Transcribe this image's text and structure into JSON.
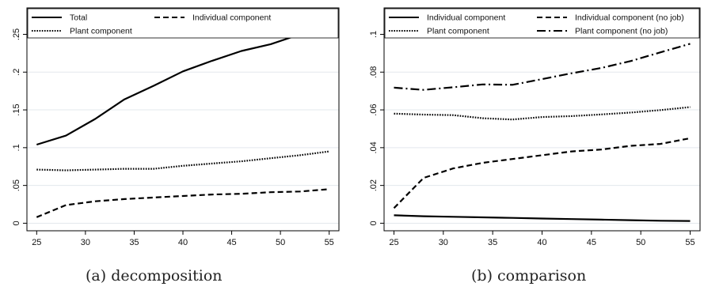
{
  "colors": {
    "line": "#000000",
    "grid": "#e3e8ed",
    "frame": "#000000",
    "background": "#ffffff"
  },
  "chart_data": [
    {
      "type": "line",
      "caption": "(a) decomposition",
      "x": [
        25,
        28,
        31,
        34,
        37,
        40,
        43,
        46,
        49,
        52,
        55
      ],
      "xticks": [
        25,
        30,
        35,
        40,
        45,
        50,
        55
      ],
      "xlim": [
        24,
        56
      ],
      "ylim": [
        -0.01,
        0.285
      ],
      "yticks": [
        0,
        0.05,
        0.1,
        0.15,
        0.2,
        0.25
      ],
      "ytick_labels": [
        "0",
        ".05",
        ".1",
        ".15",
        ".2",
        ".25"
      ],
      "grid": true,
      "legend_position": "top",
      "series": [
        {
          "name": "Total",
          "style": "solid",
          "values": [
            0.104,
            0.116,
            0.138,
            0.164,
            0.182,
            0.201,
            0.215,
            0.228,
            0.237,
            0.25,
            0.253
          ]
        },
        {
          "name": "Individual component",
          "style": "dashed",
          "values": [
            0.008,
            0.024,
            0.029,
            0.032,
            0.034,
            0.036,
            0.038,
            0.039,
            0.041,
            0.042,
            0.045
          ]
        },
        {
          "name": "Plant component",
          "style": "dotted",
          "values": [
            0.071,
            0.07,
            0.071,
            0.072,
            0.072,
            0.076,
            0.079,
            0.082,
            0.086,
            0.09,
            0.095
          ]
        }
      ]
    },
    {
      "type": "line",
      "caption": "(b) comparison",
      "x": [
        25,
        28,
        31,
        34,
        37,
        40,
        43,
        46,
        49,
        52,
        55
      ],
      "xticks": [
        25,
        30,
        35,
        40,
        45,
        50,
        55
      ],
      "xlim": [
        24,
        56
      ],
      "ylim": [
        -0.004,
        0.114
      ],
      "yticks": [
        0,
        0.02,
        0.04,
        0.06,
        0.08,
        0.1
      ],
      "ytick_labels": [
        "0",
        ".02",
        ".04",
        ".06",
        ".08",
        ".1"
      ],
      "grid": true,
      "legend_position": "top",
      "series": [
        {
          "name": "Individual component",
          "style": "solid",
          "values": [
            0.0042,
            0.0037,
            0.0034,
            0.0031,
            0.0028,
            0.0025,
            0.0022,
            0.0019,
            0.0016,
            0.0013,
            0.0012
          ]
        },
        {
          "name": "Individual component (no job)",
          "style": "dashed",
          "values": [
            0.008,
            0.024,
            0.029,
            0.032,
            0.034,
            0.036,
            0.038,
            0.039,
            0.041,
            0.042,
            0.045
          ]
        },
        {
          "name": "Plant component",
          "style": "dotted",
          "values": [
            0.058,
            0.0575,
            0.0572,
            0.0556,
            0.0549,
            0.0562,
            0.0567,
            0.0576,
            0.0586,
            0.0599,
            0.0615
          ]
        },
        {
          "name": "Plant component (no job)",
          "style": "dashdot",
          "values": [
            0.0718,
            0.0706,
            0.072,
            0.0735,
            0.0733,
            0.0763,
            0.0794,
            0.0822,
            0.0859,
            0.0905,
            0.095
          ]
        }
      ]
    }
  ]
}
